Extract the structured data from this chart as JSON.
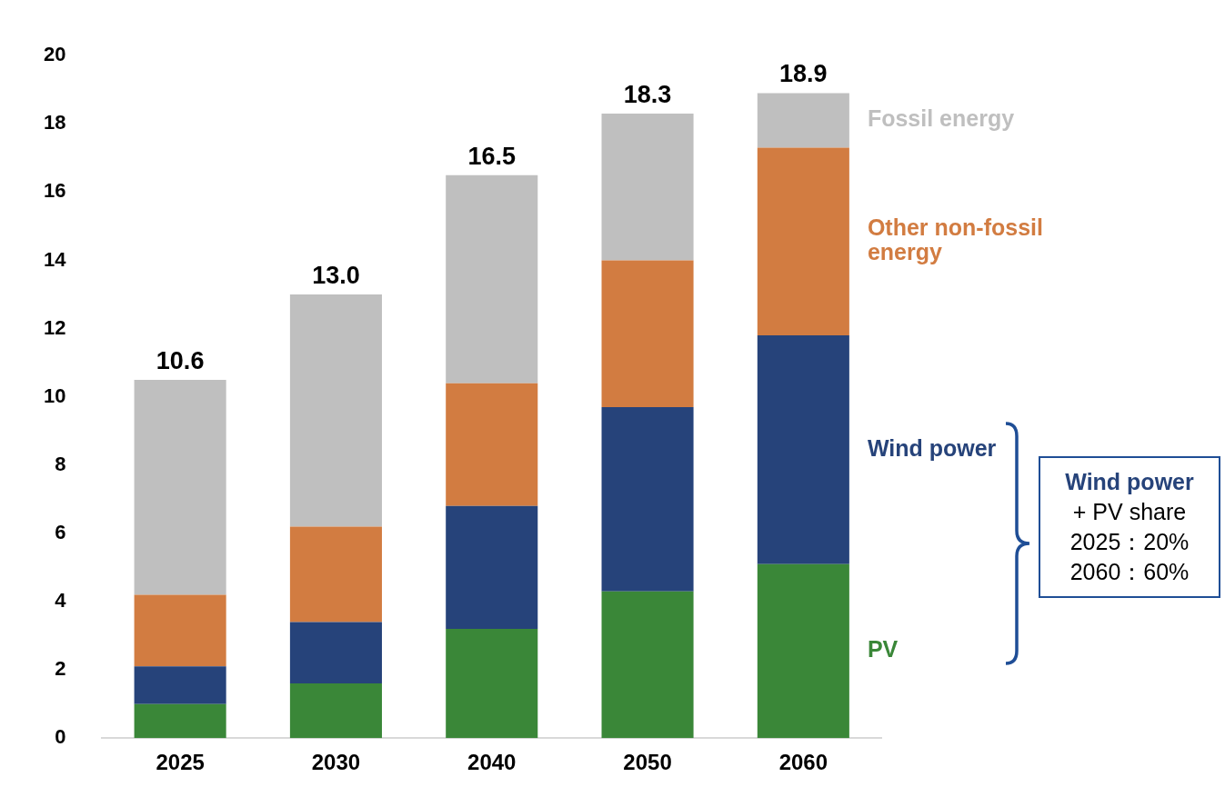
{
  "chart_data": {
    "type": "bar",
    "stacked": true,
    "categories": [
      "2025",
      "2030",
      "2040",
      "2050",
      "2060"
    ],
    "series": [
      {
        "name": "PV",
        "color": "#3a8738",
        "values": [
          1.0,
          1.6,
          3.2,
          4.3,
          5.1
        ]
      },
      {
        "name": "Wind power",
        "color": "#26437a",
        "values": [
          1.1,
          1.8,
          3.6,
          5.4,
          6.7
        ]
      },
      {
        "name": "Other non-fossil energy",
        "color": "#d27c41",
        "values": [
          2.1,
          2.8,
          3.6,
          4.3,
          5.5
        ]
      },
      {
        "name": "Fossil energy",
        "color": "#bfbfbf",
        "values": [
          6.3,
          6.8,
          6.1,
          4.3,
          1.6
        ]
      }
    ],
    "totals": [
      "10.6",
      "13.0",
      "16.5",
      "18.3",
      "18.9"
    ],
    "ylim": [
      0,
      20
    ],
    "yticks": [
      0,
      2,
      4,
      6,
      8,
      10,
      12,
      14,
      16,
      18,
      20
    ],
    "grid": false,
    "legend": false,
    "annotations": [
      "Wind power",
      "+ PV share",
      "2025：20%",
      "2060：60%"
    ]
  }
}
